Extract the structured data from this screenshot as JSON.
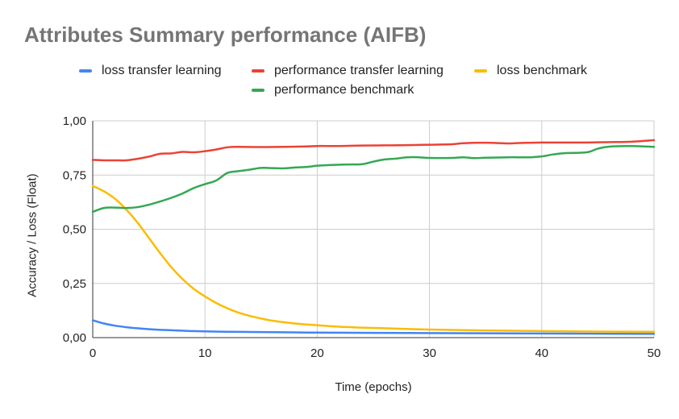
{
  "chart_data": {
    "type": "line",
    "title": "Attributes Summary performance (AIFB)",
    "xlabel": "Time (epochs)",
    "ylabel": "Accuracy / Loss (Float)",
    "xlim": [
      0,
      50
    ],
    "ylim": [
      0,
      1
    ],
    "x_ticks": [
      0,
      10,
      20,
      30,
      40,
      50
    ],
    "x_tick_labels": [
      "0",
      "10",
      "20",
      "30",
      "40",
      "50"
    ],
    "y_ticks": [
      0,
      0.25,
      0.5,
      0.75,
      1.0
    ],
    "y_tick_labels": [
      "0,00",
      "0,25",
      "0,50",
      "0,75",
      "1,00"
    ],
    "grid": true,
    "legend_position": "top",
    "series": [
      {
        "name": "loss transfer learning",
        "color": "#4285F4",
        "x": [
          0,
          1,
          2,
          3,
          4,
          5,
          6,
          7,
          8,
          9,
          10,
          12,
          14,
          16,
          18,
          20,
          25,
          30,
          35,
          40,
          45,
          50
        ],
        "y": [
          0.08,
          0.065,
          0.055,
          0.048,
          0.043,
          0.039,
          0.036,
          0.034,
          0.032,
          0.03,
          0.029,
          0.027,
          0.026,
          0.025,
          0.024,
          0.023,
          0.022,
          0.021,
          0.02,
          0.019,
          0.018,
          0.017
        ]
      },
      {
        "name": "performance transfer learning",
        "color": "#EA4335",
        "x": [
          0,
          1,
          2,
          3,
          4,
          5,
          6,
          7,
          8,
          9,
          10,
          11,
          12,
          13,
          15,
          17,
          19,
          20,
          22,
          24,
          26,
          28,
          30,
          32,
          33,
          35,
          37,
          38,
          40,
          42,
          44,
          46,
          48,
          50
        ],
        "y": [
          0.82,
          0.818,
          0.818,
          0.818,
          0.825,
          0.835,
          0.848,
          0.85,
          0.857,
          0.855,
          0.86,
          0.868,
          0.878,
          0.88,
          0.879,
          0.88,
          0.882,
          0.884,
          0.884,
          0.886,
          0.887,
          0.888,
          0.89,
          0.892,
          0.897,
          0.899,
          0.896,
          0.898,
          0.9,
          0.9,
          0.9,
          0.902,
          0.904,
          0.911
        ]
      },
      {
        "name": "loss benchmark",
        "color": "#FBBC04",
        "x": [
          0,
          1,
          2,
          3,
          4,
          5,
          6,
          7,
          8,
          9,
          10,
          11,
          12,
          13,
          14,
          15,
          16,
          18,
          20,
          22,
          24,
          26,
          28,
          30,
          35,
          40,
          45,
          50
        ],
        "y": [
          0.7,
          0.675,
          0.64,
          0.59,
          0.53,
          0.46,
          0.39,
          0.325,
          0.27,
          0.225,
          0.19,
          0.16,
          0.135,
          0.115,
          0.1,
          0.088,
          0.078,
          0.065,
          0.057,
          0.05,
          0.046,
          0.043,
          0.04,
          0.037,
          0.033,
          0.03,
          0.028,
          0.027
        ]
      },
      {
        "name": "performance benchmark",
        "color": "#34A853",
        "x": [
          0,
          1,
          2,
          3,
          4,
          5,
          6,
          7,
          8,
          9,
          10,
          11,
          12,
          13,
          14,
          15,
          16,
          17,
          18,
          19,
          20,
          21,
          22,
          23,
          24,
          25,
          26,
          27,
          28,
          29,
          30,
          32,
          33,
          34,
          35,
          37,
          39,
          40,
          41,
          42,
          44,
          45,
          46,
          48,
          50
        ],
        "y": [
          0.58,
          0.598,
          0.6,
          0.598,
          0.602,
          0.613,
          0.628,
          0.645,
          0.665,
          0.69,
          0.708,
          0.725,
          0.76,
          0.768,
          0.775,
          0.783,
          0.782,
          0.781,
          0.785,
          0.787,
          0.793,
          0.796,
          0.798,
          0.799,
          0.8,
          0.812,
          0.822,
          0.826,
          0.832,
          0.832,
          0.829,
          0.829,
          0.832,
          0.828,
          0.83,
          0.832,
          0.832,
          0.836,
          0.845,
          0.851,
          0.855,
          0.872,
          0.881,
          0.884,
          0.88
        ]
      }
    ]
  }
}
